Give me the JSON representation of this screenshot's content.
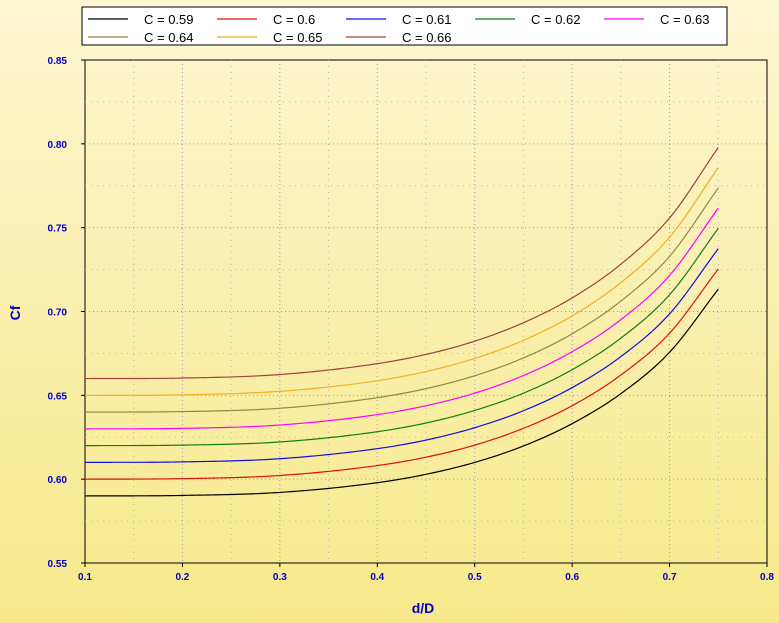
{
  "colors": {
    "background_top": "#fdf6d2",
    "background_bottom": "#f7e98a",
    "axis_text": "#0000c8",
    "grid": "#9a9a9a"
  },
  "chart_data": {
    "type": "line",
    "xlabel": "d/D",
    "ylabel": "Cf",
    "xlim": [
      0.1,
      0.8
    ],
    "ylim": [
      0.55,
      0.85
    ],
    "xticks": [
      "0.1",
      "0.2",
      "0.3",
      "0.4",
      "0.5",
      "0.6",
      "0.7",
      "0.8"
    ],
    "yticks": [
      "0.55",
      "0.60",
      "0.65",
      "0.70",
      "0.75",
      "0.80",
      "0.85"
    ],
    "grid": true,
    "legend_position": "top",
    "x": [
      0.1,
      0.2,
      0.3,
      0.4,
      0.45,
      0.5,
      0.55,
      0.6,
      0.65,
      0.7,
      0.75
    ],
    "series": [
      {
        "name": "C = 0.59",
        "color": "#000000",
        "values": [
          0.59,
          0.5903,
          0.5921,
          0.5979,
          0.6029,
          0.61,
          0.6198,
          0.6331,
          0.651,
          0.6757,
          0.7133
        ]
      },
      {
        "name": "C = 0.6",
        "color": "#e01010",
        "values": [
          0.6,
          0.6003,
          0.6022,
          0.6081,
          0.6131,
          0.6203,
          0.6303,
          0.6438,
          0.6621,
          0.6871,
          0.7254
        ]
      },
      {
        "name": "C = 0.61",
        "color": "#1010e0",
        "values": [
          0.61,
          0.6103,
          0.6122,
          0.6182,
          0.6233,
          0.6307,
          0.6408,
          0.6546,
          0.6731,
          0.6986,
          0.7375
        ]
      },
      {
        "name": "C = 0.62",
        "color": "#108010",
        "values": [
          0.62,
          0.6203,
          0.6222,
          0.6283,
          0.6335,
          0.641,
          0.6513,
          0.6653,
          0.6841,
          0.71,
          0.7496
        ]
      },
      {
        "name": "C = 0.63",
        "color": "#ff00ff",
        "values": [
          0.63,
          0.6303,
          0.6323,
          0.6385,
          0.6438,
          0.6513,
          0.6618,
          0.676,
          0.6951,
          0.7215,
          0.7617
        ]
      },
      {
        "name": "C = 0.64",
        "color": "#8c8c40",
        "values": [
          0.64,
          0.6403,
          0.6423,
          0.6486,
          0.654,
          0.6617,
          0.6723,
          0.6867,
          0.7062,
          0.7329,
          0.7737
        ]
      },
      {
        "name": "C = 0.65",
        "color": "#f0b020",
        "values": [
          0.65,
          0.6503,
          0.6524,
          0.6587,
          0.6642,
          0.672,
          0.6828,
          0.6974,
          0.7172,
          0.7443,
          0.7858
        ]
      },
      {
        "name": "C = 0.66",
        "color": "#a04040",
        "values": [
          0.66,
          0.6603,
          0.6624,
          0.6689,
          0.6744,
          0.6823,
          0.6933,
          0.7081,
          0.7282,
          0.7558,
          0.7979
        ]
      }
    ]
  }
}
